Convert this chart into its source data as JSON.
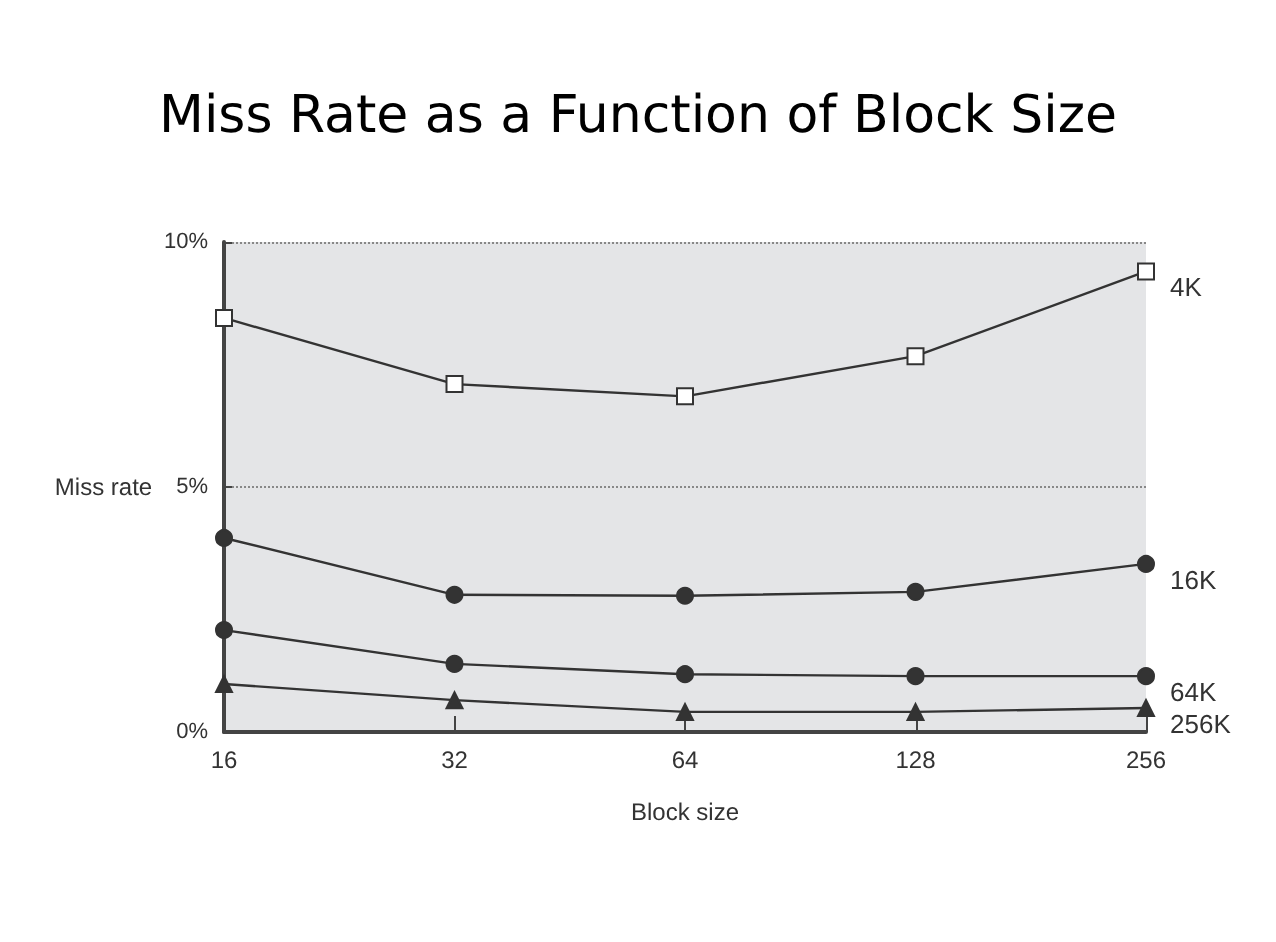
{
  "chart_data": {
    "type": "line",
    "title": "Miss Rate as a Function of Block Size",
    "xlabel": "Block size",
    "ylabel": "Miss rate",
    "categories": [
      "16",
      "32",
      "64",
      "128",
      "256"
    ],
    "series": [
      {
        "name": "4K",
        "color": "#333333",
        "marker": "square",
        "values": [
          8.45,
          7.1,
          6.85,
          7.67,
          9.4
        ]
      },
      {
        "name": "16K",
        "color": "#333333",
        "marker": "circle",
        "values": [
          3.96,
          2.8,
          2.78,
          2.86,
          3.43
        ]
      },
      {
        "name": "64K",
        "color": "#333333",
        "marker": "circle",
        "values": [
          2.08,
          1.39,
          1.18,
          1.14,
          1.14
        ]
      },
      {
        "name": "256K",
        "color": "#333333",
        "marker": "triangle",
        "values": [
          0.98,
          0.65,
          0.41,
          0.41,
          0.49
        ]
      }
    ],
    "ylim": [
      0,
      10
    ],
    "yticks": [
      {
        "value": 0,
        "label": "0%"
      },
      {
        "value": 5,
        "label": "5%"
      },
      {
        "value": 10,
        "label": "10%"
      }
    ],
    "grid": "y",
    "legend": false,
    "line_style": "solid"
  }
}
